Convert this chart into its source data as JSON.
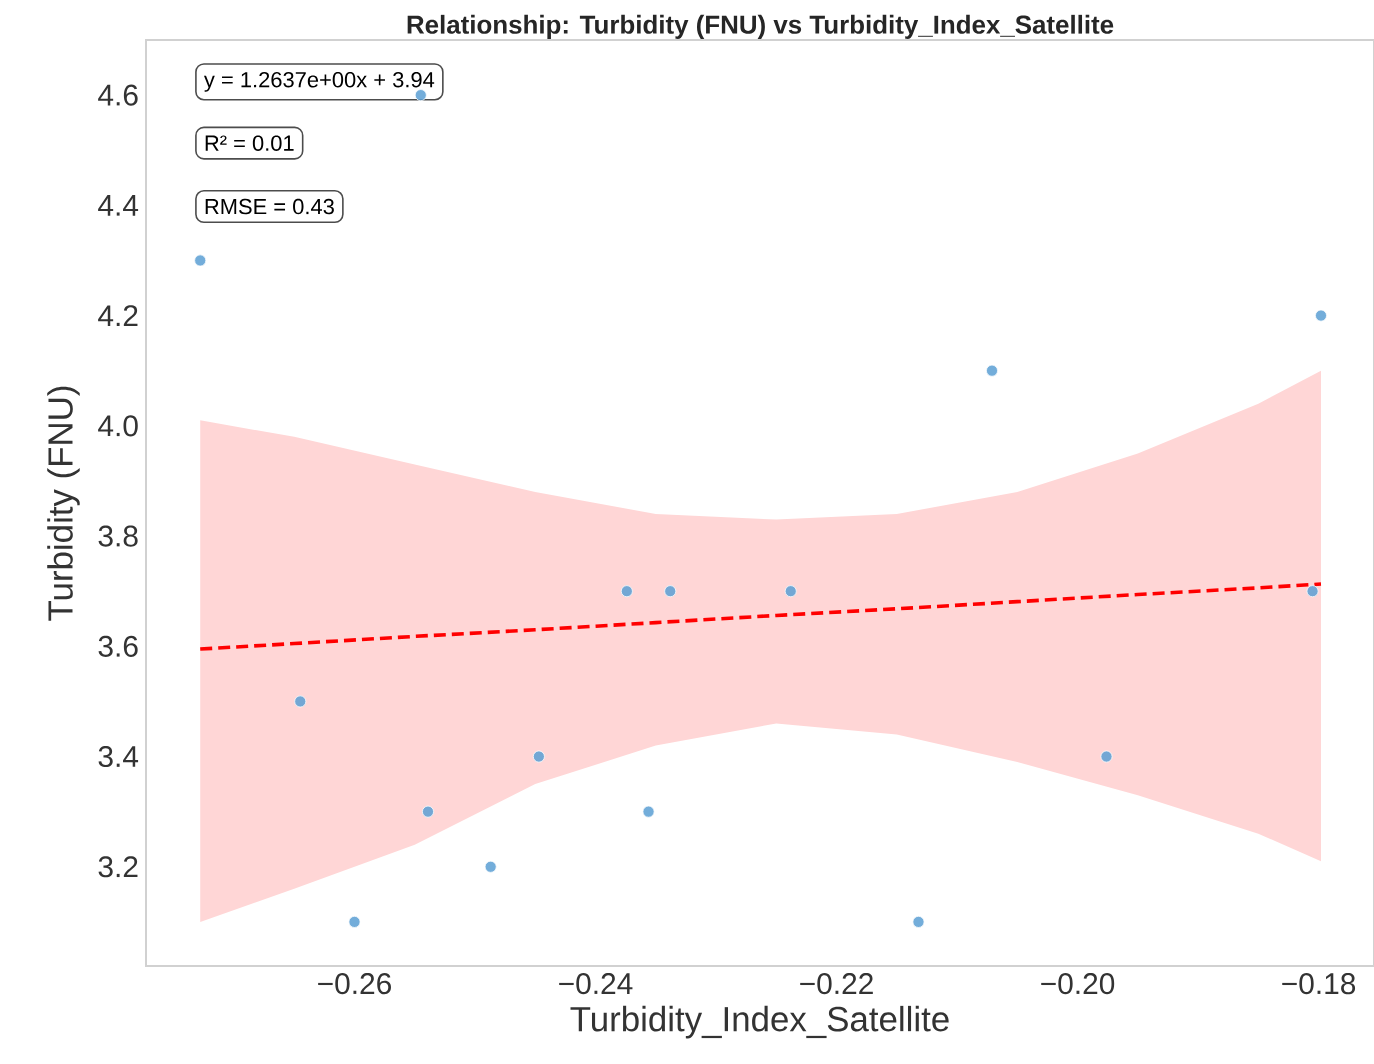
{
  "chart_data": {
    "type": "scatter",
    "title": "Relationship: Turbidity (FNU) vs Turbidity_Index_Satellite",
    "xlabel": "Turbidity_Index_Satellite",
    "ylabel": "Turbidity (FNU)",
    "xlim": [
      -0.2773,
      -0.1754
    ],
    "ylim": [
      3.02,
      4.7
    ],
    "xticks": [
      {
        "value": -0.26,
        "label": "−0.26"
      },
      {
        "value": -0.24,
        "label": "−0.24"
      },
      {
        "value": -0.22,
        "label": "−0.22"
      },
      {
        "value": -0.2,
        "label": "−0.20"
      },
      {
        "value": -0.18,
        "label": "−0.18"
      }
    ],
    "yticks": [
      {
        "value": 3.2,
        "label": "3.2"
      },
      {
        "value": 3.4,
        "label": "3.4"
      },
      {
        "value": 3.6,
        "label": "3.6"
      },
      {
        "value": 3.8,
        "label": "3.8"
      },
      {
        "value": 4.0,
        "label": "4.0"
      },
      {
        "value": 4.2,
        "label": "4.2"
      },
      {
        "value": 4.4,
        "label": "4.4"
      },
      {
        "value": 4.6,
        "label": "4.6"
      }
    ],
    "grid": false,
    "annotations": [
      "y = 1.2637e+00x + 3.94",
      "R² = 0.01",
      "RMSE = 0.43"
    ],
    "series": [
      {
        "color": "#5a9fd4",
        "marker": "circle",
        "x": [
          -0.2728,
          -0.2545,
          -0.2645,
          -0.26,
          -0.2539,
          -0.2487,
          -0.2447,
          -0.2374,
          -0.2338,
          -0.2356,
          -0.2238,
          -0.2132,
          -0.2071,
          -0.1976,
          -0.1805,
          -0.1798
        ],
        "values": [
          4.3,
          4.6,
          3.5,
          3.1,
          3.3,
          3.2,
          3.4,
          3.7,
          3.7,
          3.3,
          3.7,
          3.1,
          4.1,
          3.4,
          3.7,
          4.2
        ]
      },
      {
        "type": "line",
        "color": "#ff0000",
        "line_style": "dashed",
        "marker": "none",
        "x": [
          -0.2728,
          -0.265,
          -0.255,
          -0.245,
          -0.235,
          -0.225,
          -0.215,
          -0.205,
          -0.195,
          -0.185,
          -0.1798
        ],
        "values": [
          3.595,
          3.605,
          3.618,
          3.63,
          3.643,
          3.656,
          3.668,
          3.681,
          3.694,
          3.706,
          3.713
        ],
        "lower": [
          3.1,
          3.16,
          3.24,
          3.35,
          3.42,
          3.46,
          3.44,
          3.39,
          3.33,
          3.26,
          3.21
        ],
        "upper": [
          4.01,
          3.98,
          3.93,
          3.88,
          3.84,
          3.83,
          3.84,
          3.88,
          3.95,
          4.04,
          4.1
        ]
      }
    ]
  }
}
